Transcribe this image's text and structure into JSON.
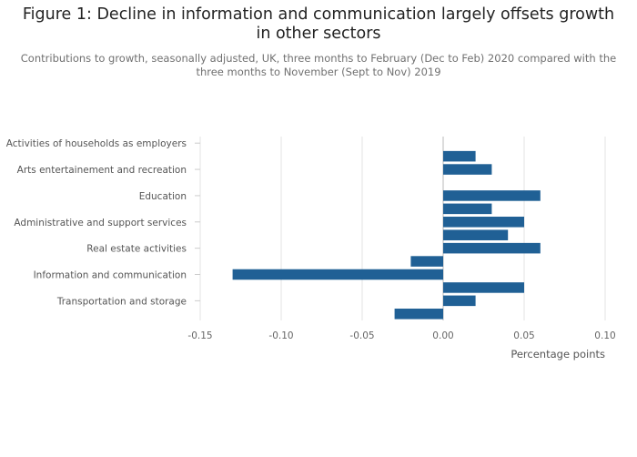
{
  "chart_data": {
    "type": "bar",
    "orientation": "horizontal",
    "title": "Figure 1: Decline in information and communication largely offsets growth in other sectors",
    "subtitle": "Contributions to growth, seasonally adjusted, UK, three months to February (Dec to Feb) 2020 compared with the three months to November (Sept to Nov) 2019",
    "xlabel": "Percentage points",
    "ylabel": "",
    "xlim": [
      -0.15,
      0.1
    ],
    "xticks": [
      -0.15,
      -0.1,
      -0.05,
      0.0,
      0.05,
      0.1
    ],
    "xtick_labels": [
      "-0.15",
      "-0.10",
      "-0.05",
      "0.00",
      "0.05",
      "0.10"
    ],
    "grid": true,
    "color": "#206095",
    "categories": [
      "Activities of households as employers",
      "",
      "Arts entertainement and recreation",
      "",
      "Education",
      "",
      "Administrative and support services",
      "",
      "Real estate activities",
      "",
      "Information and communication",
      "",
      "Transportation and storage",
      ""
    ],
    "values": [
      0.0,
      0.02,
      0.03,
      0.0,
      0.06,
      0.03,
      0.05,
      0.04,
      0.06,
      -0.02,
      -0.13,
      0.05,
      0.02,
      -0.03
    ]
  }
}
